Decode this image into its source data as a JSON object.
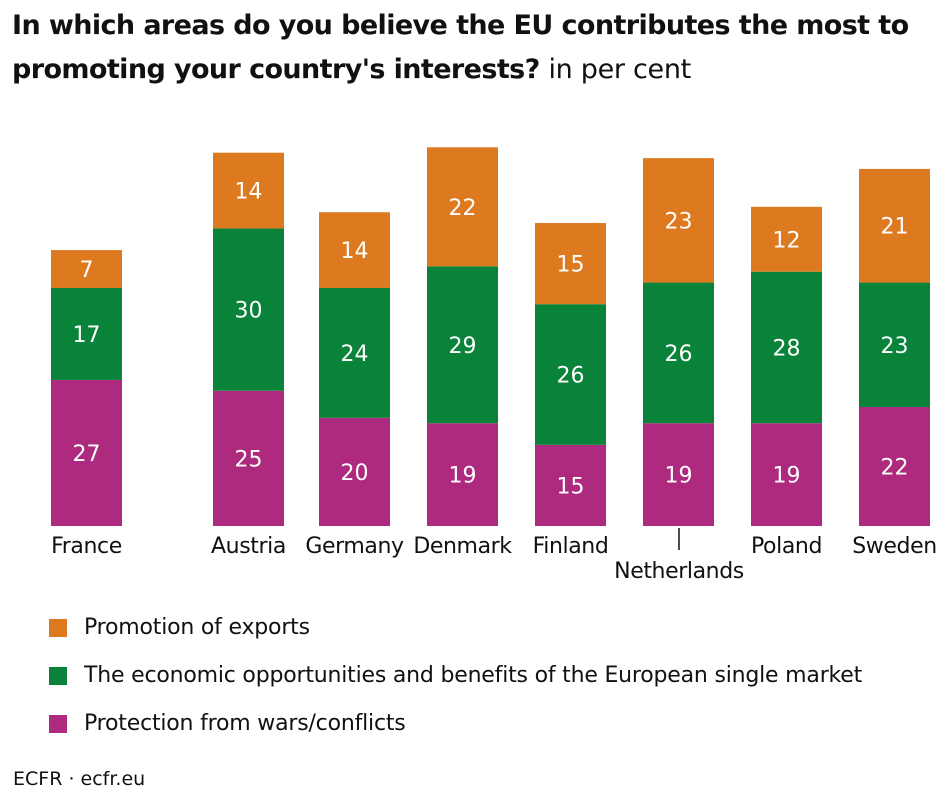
{
  "title": {
    "main": "In which areas do you believe the EU contributes the most to promoting your country's interests?",
    "unit": "in per cent"
  },
  "colors": {
    "exports": "#DD7A1F",
    "single_market": "#0A833A",
    "wars": "#AE2A7E"
  },
  "legend": [
    {
      "key": "exports",
      "label": "Promotion of exports"
    },
    {
      "key": "single_market",
      "label": "The economic opportunities and benefits of the European single market"
    },
    {
      "key": "wars",
      "label": "Protection from wars/conflicts"
    }
  ],
  "footer": "ECFR · ecfr.eu",
  "chart_data": {
    "type": "bar",
    "stacked": true,
    "title": "In which areas do you believe the EU contributes the most to promoting your country's interests? in per cent",
    "xlabel": "",
    "ylabel": "",
    "categories": [
      "France",
      "Austria",
      "Germany",
      "Denmark",
      "Finland",
      "Netherlands",
      "Poland",
      "Sweden"
    ],
    "series": [
      {
        "name": "Protection from wars/conflicts",
        "key": "wars",
        "values": [
          27,
          25,
          20,
          19,
          15,
          19,
          19,
          22
        ]
      },
      {
        "name": "The economic opportunities and benefits of the European single market",
        "key": "single_market",
        "values": [
          17,
          30,
          24,
          29,
          26,
          26,
          28,
          23
        ]
      },
      {
        "name": "Promotion of exports",
        "key": "exports",
        "values": [
          7,
          14,
          14,
          22,
          15,
          23,
          12,
          21
        ]
      }
    ],
    "grid": false,
    "legend_position": "bottom-left",
    "data_labels": true
  }
}
